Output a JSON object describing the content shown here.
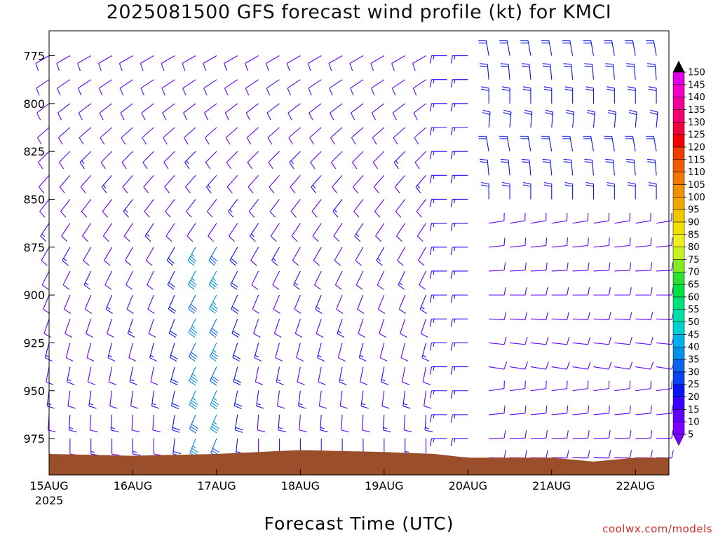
{
  "chart_data": {
    "type": "wind_barb_profile",
    "title": "2025081500 GFS forecast wind profile (kt) for KMCI",
    "xlabel": "Forecast Time (UTC)",
    "ylabel": "",
    "credit": "coolwx.com/models",
    "y_axis": {
      "scale": "pressure (hPa), increasing downward",
      "range": [
        762,
        994
      ],
      "ticks": [
        "775",
        "800",
        "825",
        "850",
        "875",
        "900",
        "925",
        "950",
        "975"
      ]
    },
    "x_axis": {
      "range_days_from_15AUG00Z": [
        0,
        7.4
      ],
      "ticks": [
        {
          "label": "15AUG",
          "sublabel": "2025"
        },
        {
          "label": "16AUG",
          "sublabel": ""
        },
        {
          "label": "17AUG",
          "sublabel": ""
        },
        {
          "label": "18AUG",
          "sublabel": ""
        },
        {
          "label": "19AUG",
          "sublabel": ""
        },
        {
          "label": "20AUG",
          "sublabel": ""
        },
        {
          "label": "21AUG",
          "sublabel": ""
        },
        {
          "label": "22AUG",
          "sublabel": ""
        }
      ]
    },
    "colorbar": {
      "units": "kt",
      "levels": [
        "5",
        "10",
        "15",
        "20",
        "25",
        "30",
        "35",
        "40",
        "45",
        "50",
        "55",
        "60",
        "65",
        "70",
        "75",
        "80",
        "85",
        "90",
        "95",
        "100",
        "105",
        "110",
        "115",
        "120",
        "125",
        "130",
        "135",
        "140",
        "145",
        "150"
      ],
      "colors": [
        "#7b00ff",
        "#6200ff",
        "#3a00ff",
        "#0a14f0",
        "#0a40f0",
        "#0a64ec",
        "#0090e8",
        "#00b0ea",
        "#00d0d0",
        "#00e0a8",
        "#00e07a",
        "#00e040",
        "#30e030",
        "#80ec20",
        "#c8f020",
        "#f0f020",
        "#f0e000",
        "#f0c800",
        "#f0a800",
        "#f09000",
        "#f07800",
        "#f05a00",
        "#f03c00",
        "#f00000",
        "#f0003c",
        "#f00070",
        "#f0009a",
        "#f000c8",
        "#e000e8",
        "#e000f0"
      ]
    },
    "pressure_levels_hPa": [
      775,
      787.5,
      800,
      812.5,
      825,
      837.5,
      850,
      862.5,
      875,
      887.5,
      900,
      912.5,
      925,
      937.5,
      950,
      962.5,
      975,
      985
    ],
    "wind_fields": [
      {
        "x_days": [
          0.0,
          4.75
        ],
        "step_hours": 6,
        "levels_hPa": [
          775,
          975
        ],
        "direction_deg_at_775": 240,
        "direction_deg_at_975": 180,
        "speed_kt_at_775": 10,
        "speed_kt_at_975": 12
      },
      {
        "x_days": [
          1.4,
          2.35
        ],
        "levels_hPa": [
          875,
          975
        ],
        "peak_speed_kt": 40,
        "direction_deg": 210
      },
      {
        "x_days": [
          4.75,
          5.1
        ],
        "levels_hPa": [
          775,
          975
        ],
        "direction_deg": 270,
        "speed_kt": 15
      },
      {
        "x_days": [
          5.1,
          7.4
        ],
        "levels_hPa": [
          775,
          850
        ],
        "direction_deg": 0,
        "speed_kt": 22
      },
      {
        "x_days": [
          5.1,
          7.4
        ],
        "levels_hPa": [
          850,
          975
        ],
        "direction_deg": 90,
        "speed_kt": 12
      }
    ],
    "terrain": {
      "color": "#9a4f2a",
      "surface_pressure_hPa_by_day": [
        [
          0,
          983
        ],
        [
          1.0,
          984
        ],
        [
          2.0,
          983
        ],
        [
          3.0,
          981
        ],
        [
          4.0,
          982
        ],
        [
          4.6,
          983
        ],
        [
          5.0,
          985
        ],
        [
          6.0,
          985
        ],
        [
          6.5,
          987
        ],
        [
          7.0,
          985
        ],
        [
          7.4,
          985
        ]
      ]
    }
  }
}
